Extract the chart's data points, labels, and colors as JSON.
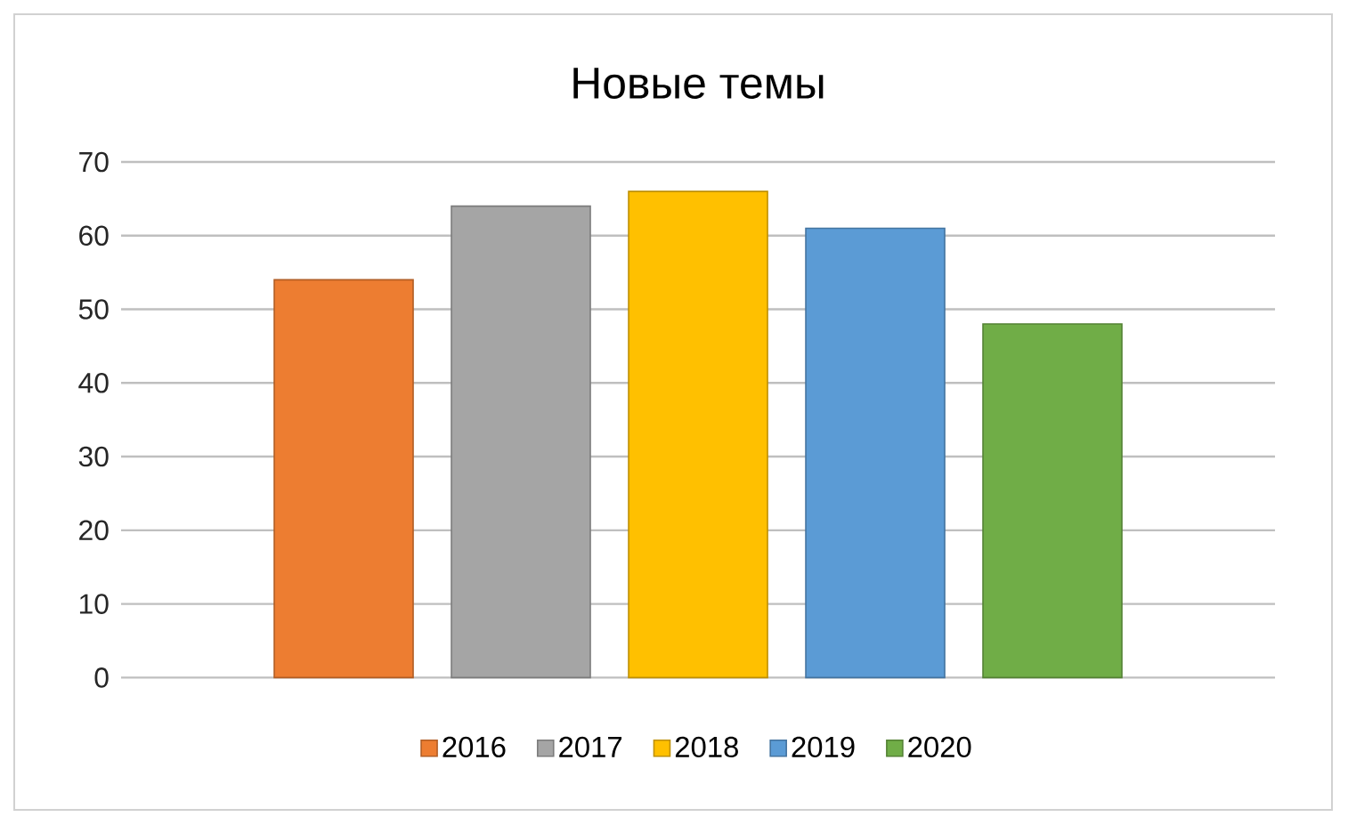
{
  "chart_data": {
    "type": "bar",
    "title": "Новые темы",
    "categories": [
      null
    ],
    "series": [
      {
        "name": "2016",
        "color": "#ed7d31",
        "values": [
          54
        ]
      },
      {
        "name": "2017",
        "color": "#a5a5a5",
        "values": [
          64
        ]
      },
      {
        "name": "2018",
        "color": "#ffc000",
        "values": [
          66
        ]
      },
      {
        "name": "2019",
        "color": "#5b9bd5",
        "values": [
          61
        ]
      },
      {
        "name": "2020",
        "color": "#70ad47",
        "values": [
          48
        ]
      }
    ],
    "ylim": [
      0,
      70
    ],
    "yticks": [
      0,
      10,
      20,
      30,
      40,
      50,
      60,
      70
    ],
    "grid": "y",
    "legend": "bottom"
  }
}
